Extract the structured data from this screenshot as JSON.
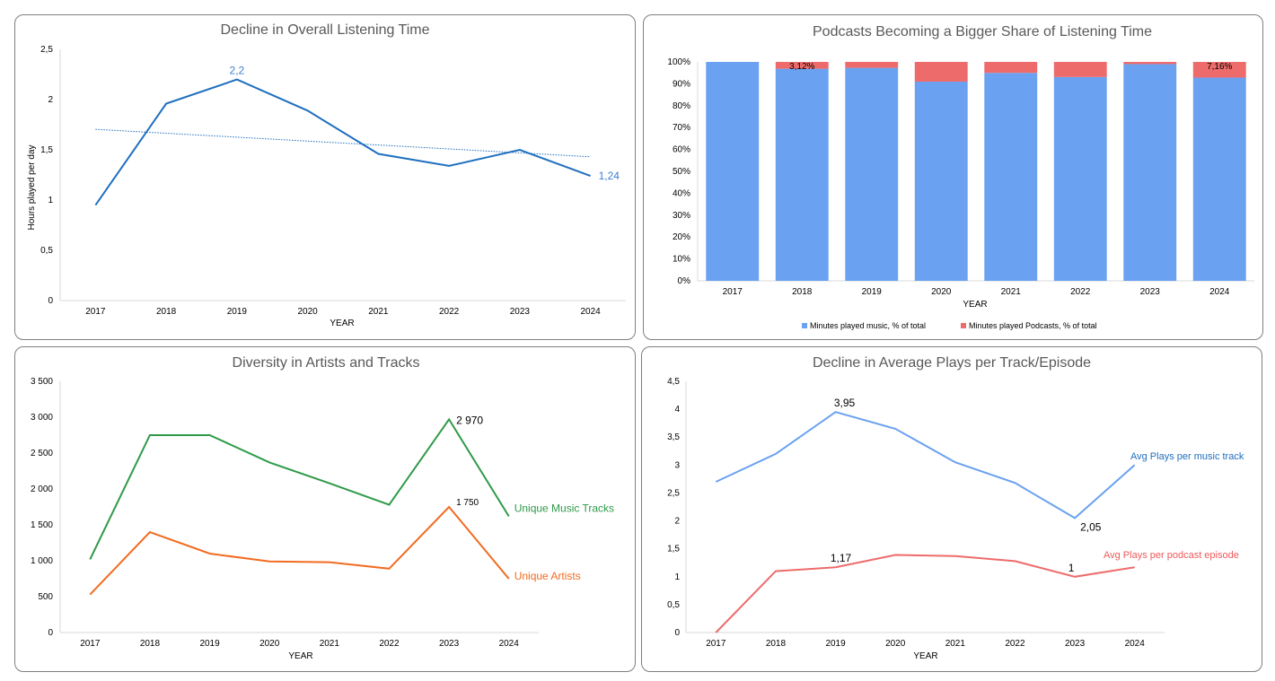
{
  "chart_data": [
    {
      "type": "line",
      "title": "Decline in Overall Listening Time",
      "xlabel": "YEAR",
      "ylabel": "Hours played per day",
      "categories": [
        "2017",
        "2018",
        "2019",
        "2020",
        "2021",
        "2022",
        "2023",
        "2024"
      ],
      "ylim": [
        0,
        2.5
      ],
      "yticks": [
        "0",
        "0,5",
        "1",
        "1,5",
        "2",
        "2,5"
      ],
      "series": [
        {
          "values": [
            0.95,
            1.96,
            2.2,
            1.89,
            1.46,
            1.34,
            1.5,
            1.24
          ],
          "color": "#1f6fbf",
          "trendline": true
        }
      ],
      "data_labels": [
        {
          "index": 2,
          "text": "2,2"
        },
        {
          "index": 7,
          "text": "1,24"
        }
      ],
      "grid": false
    },
    {
      "type": "bar",
      "stacked": true,
      "title": "Podcasts Becoming a Bigger Share of Listening Time",
      "xlabel": "YEAR",
      "categories": [
        "2017",
        "2018",
        "2019",
        "2020",
        "2021",
        "2022",
        "2023",
        "2024"
      ],
      "ylim": [
        0,
        100
      ],
      "yticks": [
        "0%",
        "10%",
        "20%",
        "30%",
        "40%",
        "50%",
        "60%",
        "70%",
        "80%",
        "90%",
        "100%"
      ],
      "series": [
        {
          "name": "Minutes played music, % of total",
          "values": [
            100,
            96.88,
            97.3,
            91.0,
            95.0,
            93.1,
            99.0,
            92.84
          ],
          "color": "#6aa1f0"
        },
        {
          "name": "Minutes played Podcasts, % of total",
          "values": [
            0,
            3.12,
            2.7,
            9.0,
            5.0,
            6.9,
            1.0,
            7.16
          ],
          "color": "#ee6b6b"
        }
      ],
      "data_labels": [
        {
          "index": 1,
          "text": "3,12%"
        },
        {
          "index": 7,
          "text": "7,16%"
        }
      ],
      "legend": "bottom"
    },
    {
      "type": "line",
      "title": "Diversity in Artists and Tracks",
      "xlabel": "YEAR",
      "categories": [
        "2017",
        "2018",
        "2019",
        "2020",
        "2021",
        "2022",
        "2023",
        "2024"
      ],
      "ylim": [
        0,
        3500
      ],
      "yticks": [
        "0",
        "500",
        "1 000",
        "1 500",
        "2 000",
        "2 500",
        "3 000",
        "3 500"
      ],
      "series": [
        {
          "name": "Unique Music Tracks",
          "values": [
            1020,
            2750,
            2750,
            2370,
            2080,
            1780,
            2970,
            1620
          ],
          "color": "#2e9a48"
        },
        {
          "name": "Unique Artists",
          "values": [
            530,
            1400,
            1100,
            990,
            980,
            890,
            1750,
            750
          ],
          "color": "#f26b21"
        }
      ],
      "data_labels": [
        {
          "series": 0,
          "index": 6,
          "text": "2 970"
        },
        {
          "series": 1,
          "index": 6,
          "text": "1 750"
        }
      ],
      "grid": false
    },
    {
      "type": "line",
      "title": "Decline in Average Plays per Track/Episode",
      "xlabel": "YEAR",
      "categories": [
        "2017",
        "2018",
        "2019",
        "2020",
        "2021",
        "2022",
        "2023",
        "2024"
      ],
      "ylim": [
        0,
        4.5
      ],
      "yticks": [
        "0",
        "0,5",
        "1",
        "1,5",
        "2",
        "2,5",
        "3",
        "3,5",
        "4",
        "4,5"
      ],
      "series": [
        {
          "name": "Avg Plays per music track",
          "values": [
            2.7,
            3.2,
            3.95,
            3.65,
            3.05,
            2.68,
            2.05,
            3.0
          ],
          "color": "#6aa1f0",
          "label_color": "#1f6fbf"
        },
        {
          "name": "Avg Plays per podcast episode",
          "values": [
            0,
            1.1,
            1.17,
            1.39,
            1.37,
            1.28,
            1.0,
            1.17
          ],
          "color": "#ee6b6b",
          "label_color": "#ee5a5a"
        }
      ],
      "data_labels": [
        {
          "series": 0,
          "index": 2,
          "text": "3,95"
        },
        {
          "series": 0,
          "index": 6,
          "text": "2,05"
        },
        {
          "series": 1,
          "index": 2,
          "text": "1,17"
        },
        {
          "series": 1,
          "index": 6,
          "text": "1"
        }
      ],
      "grid": false
    }
  ]
}
